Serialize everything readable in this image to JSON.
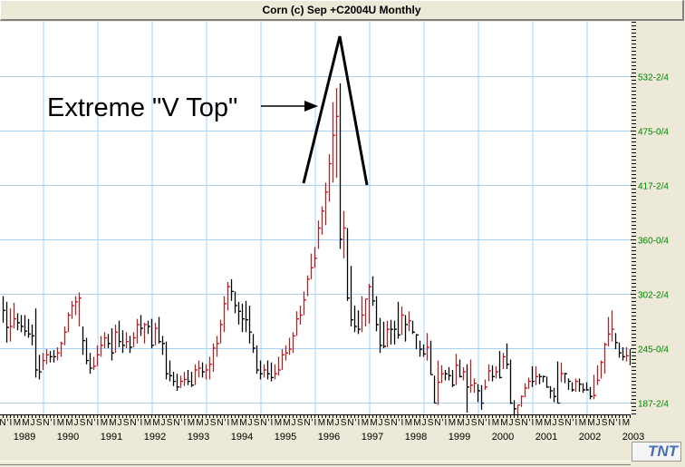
{
  "window": {
    "title": "Corn (c) Sep +C2004U Monthly",
    "logo": "TNT"
  },
  "chart_data": {
    "type": "ohlc-bar",
    "title": "Corn (c) Sep +C2004U Monthly",
    "start_month": "1988-11",
    "interval": "monthly",
    "ylim": [
      150,
      580
    ],
    "y_ticks": [
      {
        "value": 532.5,
        "label": "532-2/4"
      },
      {
        "value": 475,
        "label": "475-0/4"
      },
      {
        "value": 417.5,
        "label": "417-2/4"
      },
      {
        "value": 360,
        "label": "360-0/4"
      },
      {
        "value": 302.5,
        "label": "302-2/4"
      },
      {
        "value": 245,
        "label": "245-0/4"
      },
      {
        "value": 187.5,
        "label": "187-2/4"
      }
    ],
    "x_years": [
      "1989",
      "1990",
      "1991",
      "1992",
      "1993",
      "1994",
      "1995",
      "1996",
      "1997",
      "1998",
      "1999",
      "2000",
      "2001",
      "2002",
      "2003"
    ],
    "month_letters": [
      "I",
      "",
      "M",
      "",
      "M",
      "J",
      "",
      "",
      "S",
      "",
      "N",
      "'"
    ],
    "annotation": {
      "text": "Extreme \"V Top\""
    },
    "bars_hlc": [
      [
        300,
        272,
        285
      ],
      [
        294,
        251,
        267
      ],
      [
        287,
        252,
        268
      ],
      [
        293,
        266,
        276
      ],
      [
        282,
        264,
        272
      ],
      [
        280,
        262,
        268
      ],
      [
        280,
        258,
        263
      ],
      [
        276,
        256,
        260
      ],
      [
        270,
        248,
        258
      ],
      [
        287,
        214,
        222
      ],
      [
        238,
        212,
        220
      ],
      [
        240,
        222,
        232
      ],
      [
        244,
        228,
        238
      ],
      [
        242,
        230,
        236
      ],
      [
        243,
        230,
        236
      ],
      [
        246,
        232,
        240
      ],
      [
        252,
        236,
        250
      ],
      [
        268,
        248,
        262
      ],
      [
        283,
        262,
        280
      ],
      [
        295,
        276,
        290
      ],
      [
        300,
        280,
        294
      ],
      [
        304,
        268,
        298
      ],
      [
        268,
        238,
        253
      ],
      [
        256,
        228,
        232
      ],
      [
        240,
        218,
        224
      ],
      [
        236,
        222,
        226
      ],
      [
        248,
        226,
        238
      ],
      [
        258,
        236,
        248
      ],
      [
        262,
        245,
        256
      ],
      [
        260,
        245,
        250
      ],
      [
        266,
        232,
        240
      ],
      [
        270,
        240,
        262
      ],
      [
        274,
        246,
        252
      ],
      [
        264,
        240,
        248
      ],
      [
        262,
        245,
        252
      ],
      [
        258,
        240,
        246
      ],
      [
        262,
        246,
        256
      ],
      [
        276,
        250,
        270
      ],
      [
        280,
        258,
        266
      ],
      [
        272,
        250,
        270
      ],
      [
        274,
        260,
        268
      ],
      [
        276,
        245,
        248
      ],
      [
        272,
        248,
        266
      ],
      [
        278,
        250,
        252
      ],
      [
        258,
        238,
        250
      ],
      [
        252,
        212,
        218
      ],
      [
        232,
        210,
        216
      ],
      [
        220,
        205,
        210
      ],
      [
        218,
        200,
        204
      ],
      [
        216,
        203,
        210
      ],
      [
        220,
        205,
        212
      ],
      [
        222,
        206,
        210
      ],
      [
        220,
        204,
        206
      ],
      [
        228,
        206,
        222
      ],
      [
        232,
        214,
        224
      ],
      [
        230,
        214,
        220
      ],
      [
        228,
        212,
        222
      ],
      [
        236,
        212,
        228
      ],
      [
        250,
        220,
        245
      ],
      [
        258,
        236,
        250
      ],
      [
        275,
        250,
        270
      ],
      [
        300,
        262,
        292
      ],
      [
        315,
        285,
        310
      ],
      [
        318,
        295,
        305
      ],
      [
        305,
        282,
        290
      ],
      [
        294,
        270,
        284
      ],
      [
        292,
        262,
        276
      ],
      [
        295,
        262,
        275
      ],
      [
        290,
        250,
        262
      ],
      [
        260,
        240,
        245
      ],
      [
        248,
        218,
        222
      ],
      [
        232,
        212,
        218
      ],
      [
        228,
        214,
        222
      ],
      [
        232,
        212,
        218
      ],
      [
        230,
        210,
        214
      ],
      [
        228,
        212,
        218
      ],
      [
        236,
        216,
        222
      ],
      [
        244,
        222,
        238
      ],
      [
        248,
        232,
        240
      ],
      [
        256,
        238,
        244
      ],
      [
        262,
        240,
        258
      ],
      [
        284,
        258,
        276
      ],
      [
        290,
        270,
        280
      ],
      [
        305,
        280,
        296
      ],
      [
        322,
        300,
        318
      ],
      [
        345,
        318,
        330
      ],
      [
        352,
        330,
        340
      ],
      [
        380,
        350,
        372
      ],
      [
        395,
        365,
        390
      ],
      [
        420,
        375,
        410
      ],
      [
        450,
        400,
        440
      ],
      [
        505,
        420,
        470
      ],
      [
        520,
        425,
        490
      ],
      [
        525,
        350,
        360
      ],
      [
        390,
        340,
        372
      ],
      [
        372,
        295,
        298
      ],
      [
        332,
        268,
        275
      ],
      [
        290,
        262,
        268
      ],
      [
        285,
        260,
        265
      ],
      [
        300,
        262,
        280
      ],
      [
        297,
        268,
        297
      ],
      [
        313,
        271,
        310
      ],
      [
        321,
        290,
        295
      ],
      [
        300,
        263,
        270
      ],
      [
        277,
        240,
        248
      ],
      [
        273,
        245,
        247
      ],
      [
        274,
        246,
        265
      ],
      [
        275,
        249,
        265
      ],
      [
        274,
        249,
        265
      ],
      [
        294,
        255,
        259
      ],
      [
        289,
        259,
        280
      ],
      [
        280,
        252,
        270
      ],
      [
        284,
        263,
        274
      ],
      [
        274,
        260,
        262
      ],
      [
        260,
        244,
        259
      ],
      [
        253,
        236,
        244
      ],
      [
        249,
        236,
        239
      ],
      [
        261,
        232,
        246
      ],
      [
        253,
        217,
        217
      ],
      [
        216,
        187,
        187
      ],
      [
        232,
        185,
        209
      ],
      [
        227,
        208,
        218
      ],
      [
        222,
        211,
        218
      ],
      [
        225,
        211,
        216
      ],
      [
        222,
        204,
        206
      ],
      [
        239,
        206,
        227
      ],
      [
        233,
        214,
        215
      ],
      [
        225,
        211,
        220
      ],
      [
        228,
        177,
        204
      ],
      [
        233,
        198,
        206
      ],
      [
        213,
        198,
        208
      ],
      [
        207,
        188,
        200
      ],
      [
        206,
        180,
        187
      ],
      [
        212,
        201,
        204
      ],
      [
        228,
        210,
        221
      ],
      [
        227,
        210,
        215
      ],
      [
        226,
        213,
        220
      ],
      [
        242,
        213,
        214
      ],
      [
        240,
        223,
        236
      ],
      [
        250,
        223,
        228
      ],
      [
        233,
        186,
        187
      ],
      [
        190,
        174,
        181
      ],
      [
        185,
        174,
        185
      ],
      [
        195,
        183,
        194
      ],
      [
        208,
        193,
        203
      ],
      [
        214,
        202,
        210
      ],
      [
        226,
        204,
        210
      ],
      [
        226,
        206,
        215
      ],
      [
        218,
        207,
        215
      ],
      [
        216,
        209,
        215
      ],
      [
        215,
        203,
        204
      ],
      [
        205,
        192,
        200
      ],
      [
        203,
        188,
        194
      ],
      [
        231,
        187,
        187
      ],
      [
        230,
        209,
        218
      ],
      [
        219,
        208,
        218
      ],
      [
        213,
        201,
        210
      ],
      [
        209,
        199,
        201
      ],
      [
        213,
        199,
        210
      ],
      [
        213,
        199,
        207
      ],
      [
        208,
        198,
        201
      ],
      [
        209,
        200,
        201
      ],
      [
        204,
        191,
        194
      ],
      [
        217,
        191,
        195
      ],
      [
        227,
        206,
        211
      ],
      [
        232,
        213,
        230
      ],
      [
        251,
        218,
        249
      ],
      [
        278,
        247,
        260
      ],
      [
        285,
        252,
        265
      ],
      [
        261,
        244,
        251
      ],
      [
        251,
        235,
        240
      ],
      [
        246,
        232,
        236
      ],
      [
        246,
        231,
        237
      ],
      [
        244,
        227,
        234
      ]
    ],
    "colors": {
      "up": "#ff0000",
      "down": "#000000",
      "grid": "#a8d0f8",
      "axis_label": "#008000"
    },
    "grid": true
  }
}
